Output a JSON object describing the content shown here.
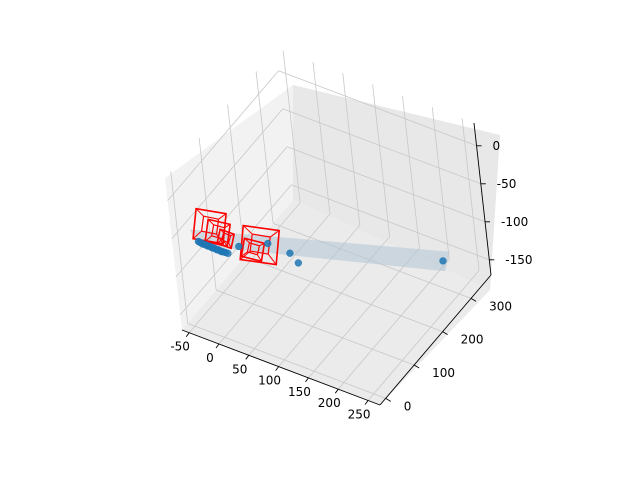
{
  "chart_data": {
    "type": "scatter",
    "projection": "3d",
    "title": "",
    "xlabel": "",
    "ylabel": "",
    "zlabel": "",
    "grid": true,
    "xlim": [
      -62,
      270
    ],
    "ylim": [
      -20,
      370
    ],
    "zlim": [
      -170,
      30
    ],
    "x_ticks": [
      -50,
      0,
      50,
      100,
      150,
      200,
      250
    ],
    "y_ticks": [
      0,
      100,
      200,
      300
    ],
    "z_ticks": [
      0,
      -50,
      -100,
      -150
    ],
    "point_color": "#1f77b4",
    "frustum_color": "#ff0000",
    "surface_color": "#b0c4d4",
    "points": [
      {
        "x": -30,
        "y": 5,
        "z": -55
      },
      {
        "x": -28,
        "y": 6,
        "z": -56
      },
      {
        "x": -26,
        "y": 7,
        "z": -57
      },
      {
        "x": -24,
        "y": 8,
        "z": -58
      },
      {
        "x": -22,
        "y": 9,
        "z": -58
      },
      {
        "x": -20,
        "y": 10,
        "z": -59
      },
      {
        "x": -18,
        "y": 11,
        "z": -60
      },
      {
        "x": -16,
        "y": 12,
        "z": -60
      },
      {
        "x": -14,
        "y": 13,
        "z": -61
      },
      {
        "x": -12,
        "y": 14,
        "z": -62
      },
      {
        "x": -10,
        "y": 15,
        "z": -62
      },
      {
        "x": -8,
        "y": 16,
        "z": -63
      },
      {
        "x": -6,
        "y": 17,
        "z": -64
      },
      {
        "x": -4,
        "y": 18,
        "z": -64
      },
      {
        "x": -2,
        "y": 19,
        "z": -65
      },
      {
        "x": 0,
        "y": 20,
        "z": -66
      },
      {
        "x": 2,
        "y": 21,
        "z": -66
      },
      {
        "x": 5,
        "y": 23,
        "z": -67
      },
      {
        "x": 8,
        "y": 25,
        "z": -68
      },
      {
        "x": 20,
        "y": 40,
        "z": -62
      },
      {
        "x": 60,
        "y": 60,
        "z": -55
      },
      {
        "x": 80,
        "y": 90,
        "z": -75
      },
      {
        "x": 90,
        "y": 95,
        "z": -87
      },
      {
        "x": 245,
        "y": 270,
        "z": -115
      }
    ],
    "frustums": [
      {
        "x": -10,
        "y": 15,
        "z": -30,
        "w": 30,
        "h": 30
      },
      {
        "x": 0,
        "y": 20,
        "z": -38,
        "w": 22,
        "h": 22
      },
      {
        "x": 10,
        "y": 25,
        "z": -45,
        "w": 14,
        "h": 14
      },
      {
        "x": 60,
        "y": 40,
        "z": -45,
        "w": 36,
        "h": 34
      },
      {
        "x": 50,
        "y": 35,
        "z": -52,
        "w": 20,
        "h": 18
      }
    ]
  }
}
